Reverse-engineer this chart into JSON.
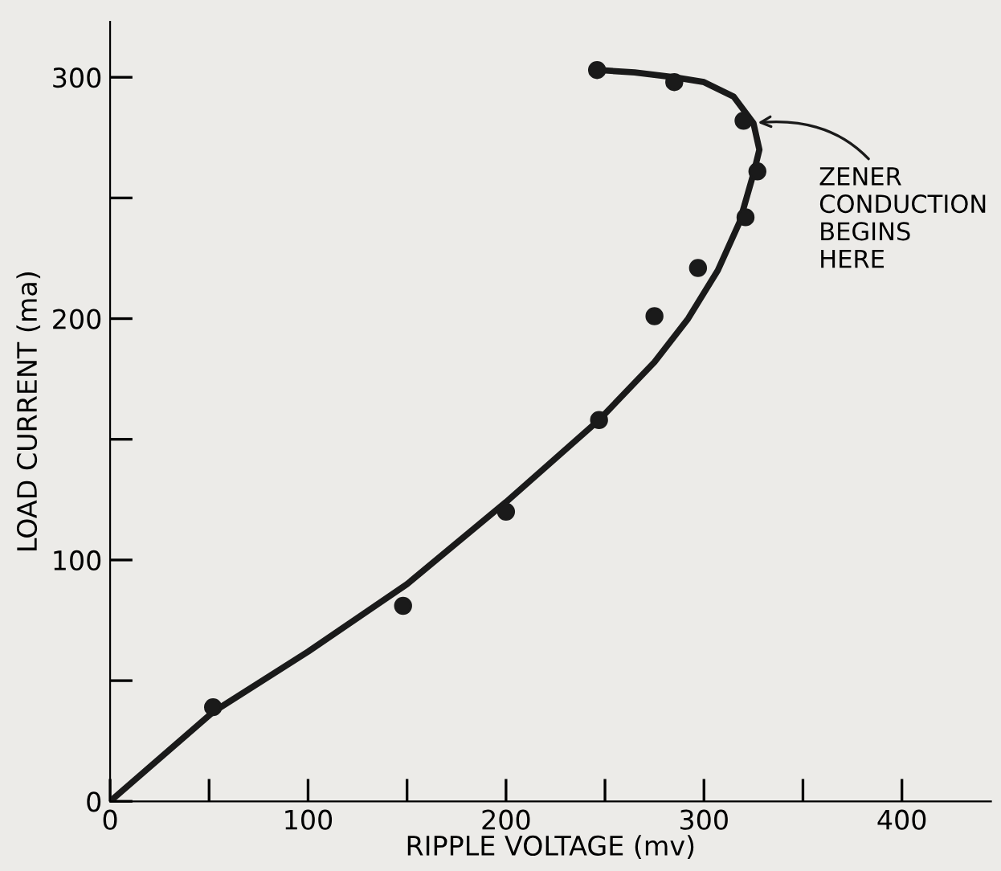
{
  "chart_data": {
    "type": "scatter",
    "xlabel": "RIPPLE VOLTAGE (mv)",
    "ylabel": "LOAD CURRENT (ma)",
    "xlim": [
      0,
      445
    ],
    "ylim": [
      0,
      323
    ],
    "xticks": [
      0,
      {
        "value": 50,
        "label": null
      },
      100,
      {
        "value": 150,
        "label": null
      },
      200,
      {
        "value": 250,
        "label": null
      },
      300,
      {
        "value": 350,
        "label": null
      },
      400
    ],
    "yticks": [
      0,
      {
        "value": 50,
        "label": null
      },
      100,
      {
        "value": 150,
        "label": null
      },
      200,
      {
        "value": 250,
        "label": null
      },
      300
    ],
    "grid": false,
    "legend": false,
    "series": [
      {
        "color": "#1a1a1a",
        "marker": "circle",
        "x": [
          52,
          148,
          200,
          247,
          275,
          297,
          321,
          327,
          320,
          285,
          246
        ],
        "values": [
          39,
          81,
          120,
          158,
          201,
          221,
          242,
          261,
          282,
          298,
          303
        ]
      },
      {
        "type": "line",
        "color": "#1a1a1a",
        "line_style": "solid",
        "x": [
          0,
          52,
          100,
          150,
          200,
          247,
          275,
          292,
          307,
          318,
          325,
          328,
          325,
          315,
          300,
          285,
          265,
          247
        ],
        "values": [
          0,
          37,
          62,
          90,
          124,
          158,
          182,
          200,
          220,
          240,
          260,
          270,
          281,
          292,
          298,
          300,
          302,
          303
        ]
      }
    ],
    "annotations": [
      {
        "text": "ZENER\nCONDUCTION\nBEGINS\nHERE",
        "x": 325,
        "y": 281
      }
    ]
  }
}
